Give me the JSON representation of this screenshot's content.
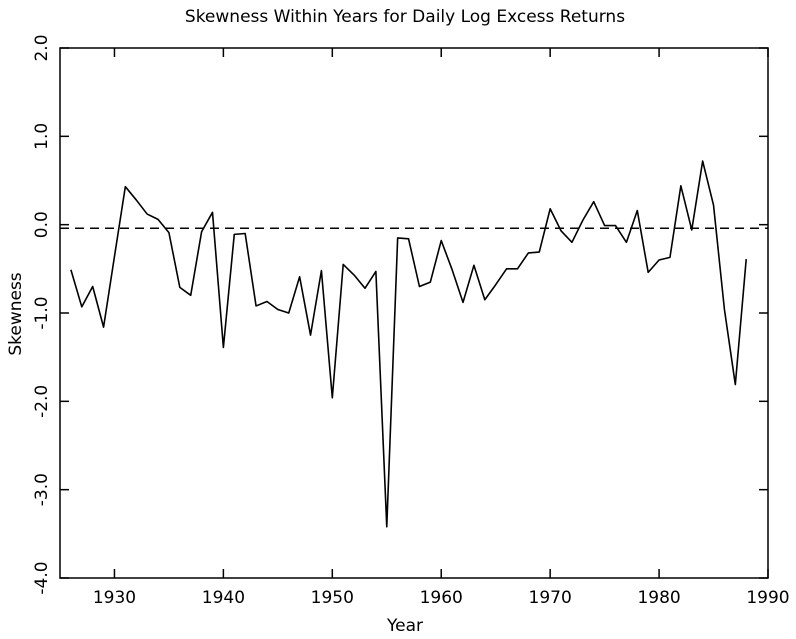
{
  "chart_data": {
    "type": "line",
    "title": "Skewness Within Years for Daily Log Excess Returns",
    "x_label": "Year",
    "y_label": "Skewness",
    "x": [
      1926,
      1927,
      1928,
      1929,
      1930,
      1931,
      1932,
      1933,
      1934,
      1935,
      1936,
      1937,
      1938,
      1939,
      1940,
      1941,
      1942,
      1943,
      1944,
      1945,
      1946,
      1947,
      1948,
      1949,
      1950,
      1951,
      1952,
      1953,
      1954,
      1955,
      1956,
      1957,
      1958,
      1959,
      1960,
      1961,
      1962,
      1963,
      1964,
      1965,
      1966,
      1967,
      1968,
      1969,
      1970,
      1971,
      1972,
      1973,
      1974,
      1975,
      1976,
      1977,
      1978,
      1979,
      1980,
      1981,
      1982,
      1983,
      1984,
      1985,
      1986,
      1987,
      1988
    ],
    "values": [
      -0.51,
      -0.93,
      -0.7,
      -1.16,
      -0.36,
      0.43,
      0.28,
      0.12,
      0.06,
      -0.09,
      -0.71,
      -0.8,
      -0.08,
      0.14,
      -1.39,
      -0.11,
      -0.1,
      -0.92,
      -0.87,
      -0.96,
      -1.0,
      -0.59,
      -1.25,
      -0.52,
      -1.96,
      -0.45,
      -0.57,
      -0.72,
      -0.53,
      -3.42,
      -0.15,
      -0.16,
      -0.7,
      -0.65,
      -0.18,
      -0.51,
      -0.88,
      -0.46,
      -0.85,
      -0.68,
      -0.5,
      -0.5,
      -0.32,
      -0.31,
      0.18,
      -0.07,
      -0.2,
      0.05,
      0.26,
      -0.01,
      -0.01,
      -0.2,
      0.16,
      -0.54,
      -0.4,
      -0.37,
      0.44,
      -0.06,
      0.72,
      0.22,
      -0.96,
      -1.81,
      -0.39
    ],
    "color": "#000000",
    "reference_line": -0.04,
    "xlim": [
      1925,
      1990
    ],
    "xticks": [
      1930,
      1940,
      1950,
      1960,
      1970,
      1980,
      1990
    ],
    "ylim": [
      -4,
      2
    ],
    "yticks": [
      {
        "value": -4,
        "label": "-4.0"
      },
      {
        "value": -3,
        "label": "-3.0"
      },
      {
        "value": -2,
        "label": "-2.0"
      },
      {
        "value": -1,
        "label": "-1.0"
      },
      {
        "value": 0,
        "label": "0.0"
      },
      {
        "value": 1,
        "label": "1.0"
      },
      {
        "value": 2,
        "label": "2.0"
      }
    ]
  }
}
